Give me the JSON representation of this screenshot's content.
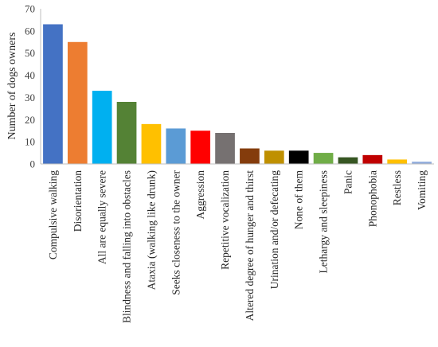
{
  "chart_data": {
    "type": "bar",
    "title": "",
    "xlabel": "",
    "ylabel": "Number of dogs owners",
    "ylim": [
      0,
      70
    ],
    "yticks": [
      0,
      10,
      20,
      30,
      40,
      50,
      60,
      70
    ],
    "grid": false,
    "legend": "none",
    "categories": [
      "Compulsive walking",
      "Disorientation",
      "All are equally severe",
      "Blindness and falling into obstacles",
      "Ataxia (walking like drunk)",
      "Seeks closeness to the owner",
      "Aggression",
      "Repetitive vocalization",
      "Altered degree of hunger and thirst",
      "Urination and/or defecating",
      "None of them",
      "Lethargy and sleepiness",
      "Panic",
      "Phonophobia",
      "Restless",
      "Vomiting"
    ],
    "values": [
      63,
      55,
      33,
      28,
      18,
      16,
      15,
      14,
      7,
      6,
      6,
      5,
      3,
      4,
      2,
      1
    ],
    "colors": [
      "#4472c4",
      "#ed7d31",
      "#00b0f0",
      "#548235",
      "#ffc000",
      "#5b9bd5",
      "#ff0000",
      "#767171",
      "#843c0c",
      "#bf9000",
      "#000000",
      "#70ad47",
      "#375623",
      "#c00000",
      "#ffc000",
      "#8eaadb"
    ]
  }
}
